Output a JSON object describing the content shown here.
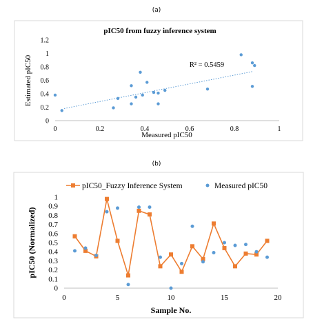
{
  "panels": {
    "a_label": "(a)",
    "b_label": "(b)"
  },
  "chart_data": [
    {
      "type": "scatter",
      "title": "pIC50 from fuzzy inference system",
      "xlabel": "Measured pIC50",
      "ylabel": "Estimated pIC50",
      "xlim": [
        0,
        1
      ],
      "ylim": [
        0,
        1.2
      ],
      "xticks": [
        "0",
        "0.2",
        "0.4",
        "0.6",
        "0.8",
        "1"
      ],
      "yticks": [
        "0",
        "0.2",
        "0.4",
        "0.6",
        "0.8",
        "1",
        "1.2"
      ],
      "annotation": "R² = 0.5459",
      "trendline": {
        "style": "dotted-linear",
        "x": [
          0.04,
          0.88
        ],
        "y": [
          0.18,
          0.73
        ]
      },
      "points": [
        {
          "x": 0.0,
          "y": 0.38
        },
        {
          "x": 0.03,
          "y": 0.15
        },
        {
          "x": 0.26,
          "y": 0.19
        },
        {
          "x": 0.28,
          "y": 0.33
        },
        {
          "x": 0.34,
          "y": 0.25
        },
        {
          "x": 0.34,
          "y": 0.52
        },
        {
          "x": 0.36,
          "y": 0.35
        },
        {
          "x": 0.38,
          "y": 0.72
        },
        {
          "x": 0.39,
          "y": 0.38
        },
        {
          "x": 0.41,
          "y": 0.57
        },
        {
          "x": 0.44,
          "y": 0.42
        },
        {
          "x": 0.46,
          "y": 0.25
        },
        {
          "x": 0.46,
          "y": 0.41
        },
        {
          "x": 0.49,
          "y": 0.45
        },
        {
          "x": 0.68,
          "y": 0.47
        },
        {
          "x": 0.83,
          "y": 0.98
        },
        {
          "x": 0.88,
          "y": 0.86
        },
        {
          "x": 0.88,
          "y": 0.51
        },
        {
          "x": 0.89,
          "y": 0.82
        }
      ],
      "colors": {
        "points": "#5b9bd5",
        "trendline": "#5b9bd5"
      },
      "grid": false
    },
    {
      "type": "line",
      "xlabel": "Sample No.",
      "ylabel": "pIC50 (Normalized)",
      "xlim": [
        0,
        20
      ],
      "ylim": [
        0,
        1
      ],
      "xticks": [
        "0",
        "5",
        "10",
        "15",
        "20"
      ],
      "yticks": [
        "0",
        "0.1",
        "0.2",
        "0.3",
        "0.4",
        "0.5",
        "0.6",
        "0.7",
        "0.8",
        "0.9",
        "1"
      ],
      "legend": "top",
      "grid": false,
      "x": [
        1,
        2,
        3,
        4,
        5,
        6,
        7,
        8,
        9,
        10,
        11,
        12,
        13,
        14,
        15,
        16,
        17,
        18,
        19
      ],
      "series": [
        {
          "name": "pIC50_Fuzzy Inference System",
          "style": "line-square",
          "color": "#ed7d31",
          "values": [
            0.57,
            0.41,
            0.35,
            0.98,
            0.52,
            0.14,
            0.85,
            0.81,
            0.24,
            0.37,
            0.18,
            0.46,
            0.32,
            0.71,
            0.44,
            0.24,
            0.38,
            0.37,
            0.52
          ]
        },
        {
          "name": "Measured pIC50",
          "style": "dots",
          "color": "#5b9bd5",
          "values": [
            0.41,
            0.44,
            0.36,
            0.84,
            0.88,
            0.04,
            0.89,
            0.89,
            0.34,
            0.0,
            0.27,
            0.68,
            0.29,
            0.39,
            0.5,
            0.47,
            0.48,
            0.4,
            0.34
          ]
        }
      ]
    }
  ]
}
